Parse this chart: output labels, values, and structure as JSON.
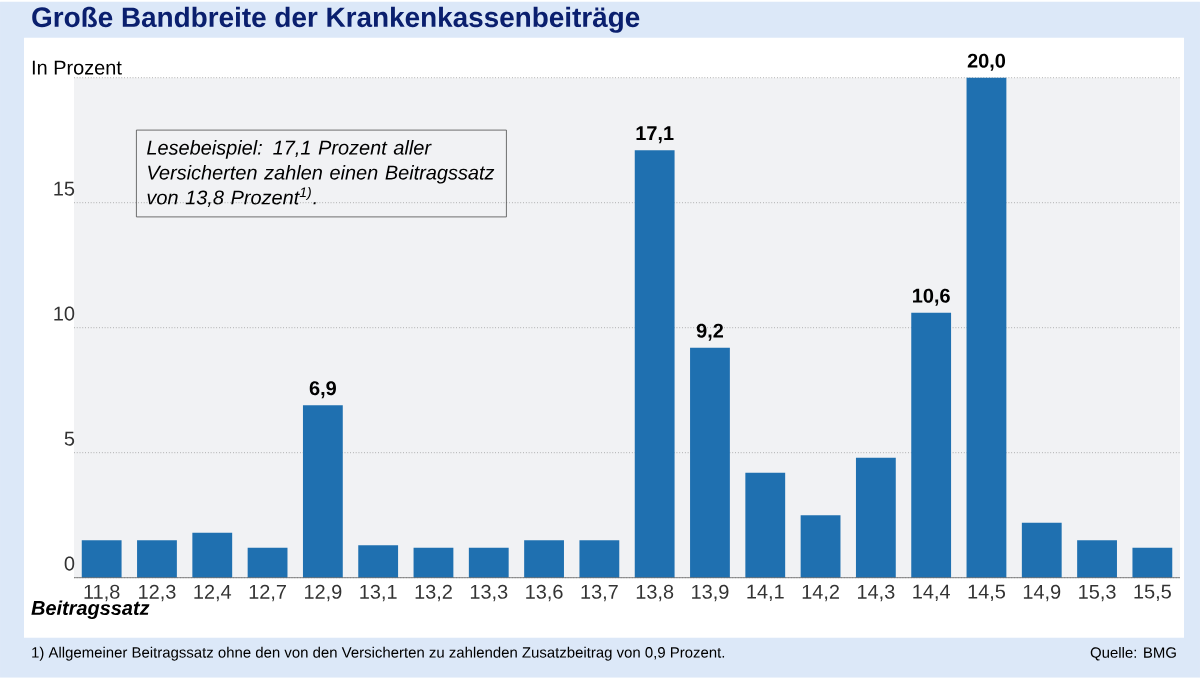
{
  "chart_data": {
    "type": "bar",
    "title": "Große Bandbreite der Krankenkassenbeiträge",
    "ylabel": "In Prozent",
    "xlabel": "Beitragssatz",
    "categories": [
      "11,8",
      "12,3",
      "12,4",
      "12,7",
      "12,9",
      "13,1",
      "13,2",
      "13,3",
      "13,6",
      "13,7",
      "13,8",
      "13,9",
      "14,1",
      "14,2",
      "14,3",
      "14,4",
      "14,5",
      "14,9",
      "15,3",
      "15,5"
    ],
    "values": [
      1.5,
      1.5,
      1.8,
      1.2,
      6.9,
      1.3,
      1.2,
      1.2,
      1.5,
      1.5,
      17.1,
      9.2,
      4.2,
      2.5,
      4.8,
      10.6,
      20.0,
      2.2,
      1.5,
      1.2
    ],
    "value_labels": [
      null,
      null,
      null,
      null,
      "6,9",
      null,
      null,
      null,
      null,
      null,
      "17,1",
      "9,2",
      null,
      null,
      null,
      "10,6",
      "20,0",
      null,
      null,
      null
    ],
    "color": "#1f70b0",
    "ylim": [
      0,
      20
    ],
    "yticks": [
      0,
      5,
      10,
      15,
      {
        "value": 20,
        "label": null
      }
    ],
    "grid": "y",
    "annotations": [
      "Lesebeispiel: 17,1 Prozent aller Versicherten zahlen einen Beitragssatz von 13,8 Prozent$^{1)}$.",
      "1) Allgemeiner Beitragssatz ohne den von den Versicherten zu zahlenden Zusatzbeitrag von 0,9 Prozent.",
      "Quelle: BMG"
    ]
  }
}
